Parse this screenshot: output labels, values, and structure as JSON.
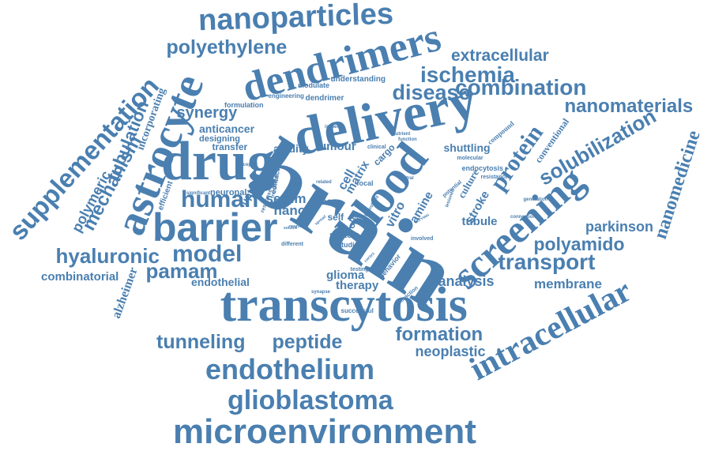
{
  "colors": {
    "word": "#4a7fb0",
    "background": "#ffffff"
  },
  "words": [
    "nanoparticles",
    "polyethylene",
    "dendrimers",
    "extracellular",
    "ischemia",
    "disease",
    "combination",
    "nanomaterials",
    "delivery",
    "drug",
    "astrocyte",
    "supplementation",
    "mechanism",
    "tubulation",
    "incorporating",
    "polymeric",
    "synergy",
    "anticancer",
    "designing",
    "transfer",
    "avidity",
    "tumour",
    "formulation",
    "engineering",
    "modulate",
    "understanding",
    "dendrimer",
    "brain",
    "blood",
    "barrier",
    "human",
    "nano",
    "serum",
    "bec",
    "cell",
    "matrix",
    "cargo",
    "uptake",
    "neuronal",
    "significant",
    "efficient",
    "protein",
    "vitro",
    "amine",
    "culture",
    "stroke",
    "shuttling",
    "endocytosis",
    "conventional",
    "solubilization",
    "nanomedicine",
    "screening",
    "tubule",
    "parkinson",
    "polyamido",
    "transport",
    "analysis",
    "membrane",
    "hyaluronic",
    "model",
    "pamam",
    "combinatorial",
    "alzheimer",
    "endothelial",
    "system",
    "studies",
    "self",
    "role",
    "glioma",
    "therapy",
    "successful",
    "testing",
    "transcytosis",
    "intracellular",
    "tunneling",
    "peptide",
    "formation",
    "neoplastic",
    "endothelium",
    "glioblastoma",
    "microenvironment",
    "focal",
    "central",
    "related",
    "clinical",
    "nutrient",
    "function",
    "compound",
    "molecular",
    "potential",
    "resistance",
    "connection",
    "generation",
    "involved",
    "behavior",
    "interaction",
    "different",
    "soluble",
    "response",
    "ischemic",
    "integration",
    "contact",
    "receptor",
    "hydrolysis",
    "nervous",
    "cortex",
    "synapse",
    "lesioned",
    "neurons",
    "spread"
  ]
}
